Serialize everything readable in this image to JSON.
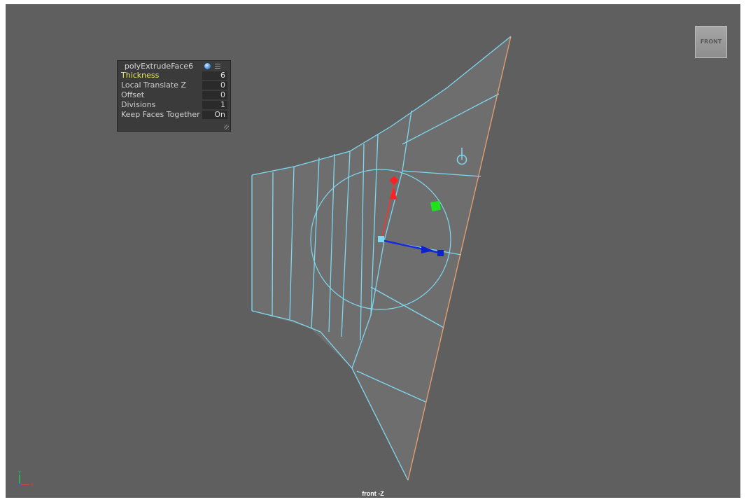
{
  "attribute_panel": {
    "title": "polyExtrudeFace6",
    "rows": [
      {
        "label": "Thickness",
        "value": "6",
        "highlighted": true
      },
      {
        "label": "Local Translate Z",
        "value": "0",
        "highlighted": false
      },
      {
        "label": "Offset",
        "value": "0",
        "highlighted": false
      },
      {
        "label": "Divisions",
        "value": "1",
        "highlighted": false
      },
      {
        "label": "Keep Faces Together",
        "value": "On",
        "highlighted": false
      }
    ]
  },
  "view_cube": {
    "label": "FRONT"
  },
  "camera_label": "front -Z",
  "axis_indicator": {
    "y_label": "Y",
    "x_label": "X"
  },
  "colors": {
    "viewport_bg": "#5f5f5f",
    "wireframe": "#7fd8f0",
    "face_fill": "#6e6e6e",
    "border_edge": "#e8a070",
    "manip_x": "#ff2020",
    "manip_y": "#20e020",
    "manip_z": "#1020d0",
    "manip_center": "#7fd8f0",
    "highlight_label": "#e8e85a"
  },
  "icons": [
    "extrude-face-mesh",
    "move-manipulator",
    "scale-handle",
    "rotate-pivot-icon",
    "globe-icon",
    "menu-icon",
    "resize-grip-icon",
    "axis-indicator-icon"
  ]
}
